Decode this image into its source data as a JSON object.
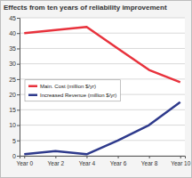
{
  "chart_data": {
    "type": "line",
    "title": "Effects from ten years of reliability improvement",
    "categories": [
      "Year 0",
      "Year 2",
      "Year 4",
      "Year 6",
      "Year 8",
      "Year 10"
    ],
    "series": [
      {
        "name": "Main. Cost (million $/yr)",
        "color": "#e8323c",
        "values": [
          40,
          41,
          42,
          35,
          28,
          24
        ]
      },
      {
        "name": "Increased Revenue (million $/yr)",
        "color": "#2e3a8c",
        "values": [
          0.5,
          1.5,
          0.5,
          5,
          10,
          17.5
        ]
      }
    ],
    "ylim": [
      0,
      45
    ],
    "yticks": [
      0,
      5,
      10,
      15,
      20,
      25,
      30,
      35,
      40,
      45
    ],
    "grid": true,
    "legend": "left"
  }
}
